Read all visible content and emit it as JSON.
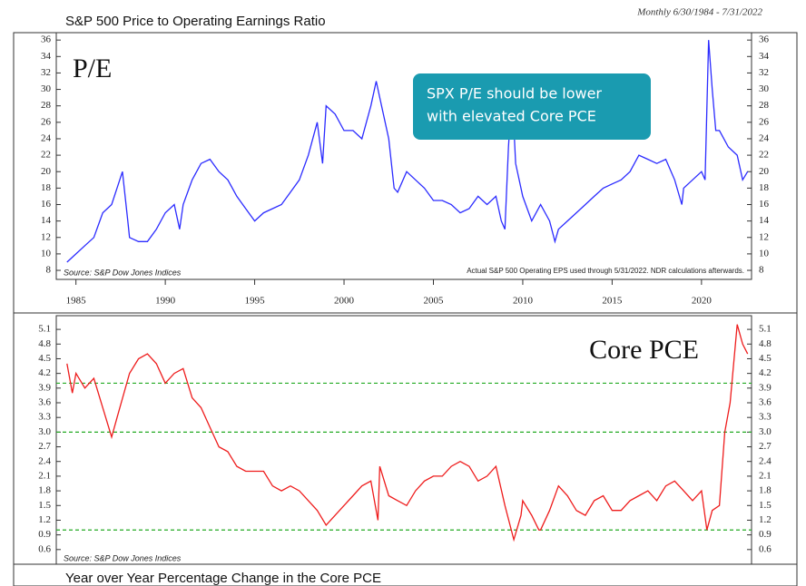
{
  "chart_data": [
    {
      "type": "line",
      "title": "S&P 500 Price to Operating Earnings Ratio",
      "subtitle": "Monthly 6/30/1984 - 7/31/2022",
      "label": "P/E",
      "source": "Source: S&P Dow Jones Indices",
      "note": "Actual S&P 500 Operating EPS used through 5/31/2022. NDR calculations afterwards.",
      "annotation": [
        "SPX P/E should be lower",
        "with elevated Core PCE"
      ],
      "annotation_color": "#1a9bb0",
      "color": "#2b2bff",
      "x": [
        1984.5,
        1985,
        1985.5,
        1986,
        1986.5,
        1987,
        1987.6,
        1987.9,
        1988,
        1988.5,
        1989,
        1989.5,
        1990,
        1990.5,
        1990.8,
        1991,
        1991.5,
        1992,
        1992.5,
        1993,
        1993.5,
        1994,
        1994.5,
        1995,
        1995.5,
        1996,
        1996.5,
        1997,
        1997.5,
        1998,
        1998.5,
        1998.8,
        1999,
        1999.5,
        2000,
        2000.5,
        2001,
        2001.5,
        2001.8,
        2002,
        2002.5,
        2002.8,
        2003,
        2003.5,
        2004,
        2004.5,
        2005,
        2005.5,
        2006,
        2006.5,
        2007,
        2007.5,
        2008,
        2008.5,
        2008.8,
        2009,
        2009.2,
        2009.4,
        2009.6,
        2010,
        2010.5,
        2011,
        2011.5,
        2011.8,
        2012,
        2012.5,
        2013,
        2013.5,
        2014,
        2014.5,
        2015,
        2015.5,
        2016,
        2016.5,
        2017,
        2017.5,
        2018,
        2018.5,
        2018.9,
        2019,
        2019.5,
        2020,
        2020.2,
        2020.4,
        2020.6,
        2020.8,
        2021,
        2021.5,
        2022,
        2022.3,
        2022.58
      ],
      "values": [
        9,
        10,
        11,
        12,
        15,
        16,
        20,
        14,
        12,
        11.5,
        11.5,
        13,
        15,
        16,
        13,
        16,
        19,
        21,
        21.5,
        20,
        19,
        17,
        15.5,
        14,
        15,
        15.5,
        16,
        17.5,
        19,
        22,
        26,
        21,
        28,
        27,
        25,
        25,
        24,
        28,
        31,
        29,
        24,
        18,
        17.5,
        20,
        19,
        18,
        16.5,
        16.5,
        16,
        15,
        15.5,
        17,
        16,
        17,
        14,
        13,
        23,
        30,
        21,
        17,
        14,
        16,
        14,
        11.5,
        13,
        14,
        15,
        16,
        17,
        18,
        18.5,
        19,
        20,
        22,
        21.5,
        21,
        21.5,
        19,
        16,
        18,
        19,
        20,
        19,
        36,
        30,
        25,
        25,
        23,
        22,
        19,
        20
      ],
      "xlim": [
        1983.9,
        2022.8
      ],
      "xticks": [
        1985,
        1990,
        1995,
        2000,
        2005,
        2010,
        2015,
        2020
      ],
      "ylim": [
        6.9,
        36.9
      ],
      "yticks": [
        8,
        10,
        12,
        14,
        16,
        18,
        20,
        22,
        24,
        26,
        28,
        30,
        32,
        34,
        36
      ]
    },
    {
      "type": "line",
      "title": "Year over Year Percentage Change in the Core PCE",
      "label": "Core PCE",
      "source": "Source: S&P Dow Jones Indices",
      "color": "#ee1c1c",
      "reference_lines": [
        4,
        3,
        1
      ],
      "reference_color": "#22aa22",
      "x": [
        1984.5,
        1984.8,
        1985,
        1985.5,
        1986,
        1986.5,
        1987,
        1987.3,
        1988,
        1988.5,
        1989,
        1989.5,
        1990,
        1990.5,
        1991,
        1991.5,
        1992,
        1992.5,
        1993,
        1993.5,
        1994,
        1994.5,
        1995,
        1995.5,
        1996,
        1996.5,
        1997,
        1997.5,
        1998,
        1998.5,
        1999,
        1999.5,
        2000,
        2000.5,
        2001,
        2001.5,
        2001.9,
        2002,
        2002.5,
        2003,
        2003.5,
        2004,
        2004.5,
        2005,
        2005.5,
        2006,
        2006.5,
        2007,
        2007.5,
        2008,
        2008.5,
        2009,
        2009.5,
        2009.9,
        2010,
        2010.5,
        2010.9,
        2011,
        2011.5,
        2012,
        2012.5,
        2013,
        2013.5,
        2014,
        2014.5,
        2015,
        2015.5,
        2016,
        2016.5,
        2017,
        2017.5,
        2018,
        2018.5,
        2019,
        2019.5,
        2020,
        2020.3,
        2020.6,
        2021,
        2021.3,
        2021.6,
        2022,
        2022.3,
        2022.58
      ],
      "values": [
        4.4,
        3.8,
        4.2,
        3.9,
        4.1,
        3.5,
        2.9,
        3.3,
        4.2,
        4.5,
        4.6,
        4.4,
        4.0,
        4.2,
        4.3,
        3.7,
        3.5,
        3.1,
        2.7,
        2.6,
        2.3,
        2.2,
        2.2,
        2.2,
        1.9,
        1.8,
        1.9,
        1.8,
        1.6,
        1.4,
        1.1,
        1.3,
        1.5,
        1.7,
        1.9,
        2.0,
        1.2,
        2.3,
        1.7,
        1.6,
        1.5,
        1.8,
        2.0,
        2.1,
        2.1,
        2.3,
        2.4,
        2.3,
        2.0,
        2.1,
        2.3,
        1.5,
        0.8,
        1.3,
        1.6,
        1.3,
        1.0,
        1.0,
        1.4,
        1.9,
        1.7,
        1.4,
        1.3,
        1.6,
        1.7,
        1.4,
        1.4,
        1.6,
        1.7,
        1.8,
        1.6,
        1.9,
        2.0,
        1.8,
        1.6,
        1.8,
        1.0,
        1.4,
        1.5,
        3.0,
        3.6,
        5.2,
        4.8,
        4.6
      ],
      "xlim": [
        1983.9,
        2022.8
      ],
      "ylim": [
        0.3,
        5.38
      ],
      "yticks": [
        0.6,
        0.9,
        1.2,
        1.5,
        1.8,
        2.1,
        2.4,
        2.7,
        {
          "value": 3,
          "label": "3.0"
        },
        3.3,
        3.6,
        3.9,
        4.2,
        4.5,
        4.8,
        5.1
      ]
    }
  ]
}
